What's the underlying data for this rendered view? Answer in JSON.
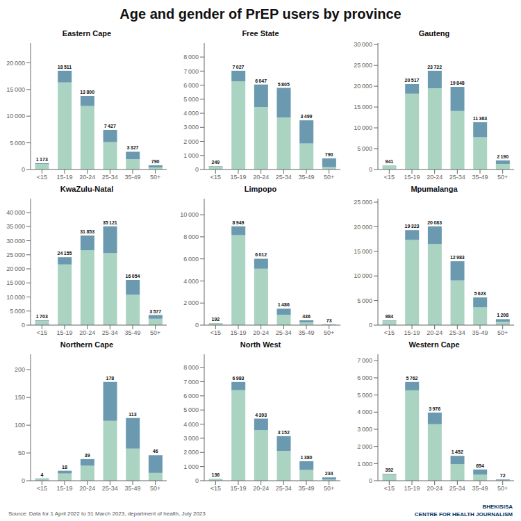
{
  "title": "Age and gender of PrEP users by province",
  "source": "Source: Data for 1 April 2022 to 31 March 2023, department of health, July 2023",
  "annotations": [
    "BHEKISISA",
    "CENTRE FOR HEALTH JOURNALISM"
  ],
  "background": "#ffffff",
  "chart_data": [
    {
      "type": "bar",
      "stacked": true,
      "grid": false,
      "title": "Eastern Cape",
      "categories": [
        "<15",
        "15-19",
        "20-24",
        "25-34",
        "35-49",
        "50+"
      ],
      "series": [
        {
          "color": "#aad4c1",
          "values": [
            1053,
            16311,
            11900,
            5127,
            1927,
            390
          ]
        },
        {
          "color": "#6b9ab0",
          "values": [
            120,
            2200,
            1900,
            2300,
            1400,
            400
          ]
        }
      ],
      "totals": [
        1173,
        18511,
        13800,
        7427,
        3327,
        790
      ],
      "total_labels": [
        "1 173",
        "18 511",
        "13 800",
        "7 427",
        "3 327",
        "790"
      ],
      "ylim": [
        0,
        23694.08
      ],
      "yticks": [
        0,
        {
          "value": 5000,
          "label": "5 000"
        },
        {
          "value": 10000,
          "label": "10 000"
        },
        {
          "value": 15000,
          "label": "15 000"
        },
        {
          "value": 20000,
          "label": "20 000"
        }
      ]
    },
    {
      "type": "bar",
      "stacked": true,
      "grid": false,
      "title": "Free State",
      "categories": [
        "<15",
        "15-19",
        "20-24",
        "25-34",
        "35-49",
        "50+"
      ],
      "series": [
        {
          "color": "#aad4c1",
          "values": [
            224,
            6277,
            4447,
            3705,
            1849,
            170
          ]
        },
        {
          "color": "#6b9ab0",
          "values": [
            25,
            750,
            1600,
            2100,
            1650,
            620
          ]
        }
      ],
      "totals": [
        249,
        7027,
        6047,
        5805,
        3499,
        790
      ],
      "total_labels": [
        "249",
        "7 027",
        "6 047",
        "5 805",
        "3 499",
        "790"
      ],
      "ylim": [
        0,
        8994.56
      ],
      "yticks": [
        0,
        {
          "value": 1000,
          "label": "1 000"
        },
        {
          "value": 2000,
          "label": "2 000"
        },
        {
          "value": 3000,
          "label": "3 000"
        },
        {
          "value": 4000,
          "label": "4 000"
        },
        {
          "value": 5000,
          "label": "5 000"
        },
        {
          "value": 6000,
          "label": "6 000"
        },
        {
          "value": 7000,
          "label": "7 000"
        },
        {
          "value": 8000,
          "label": "8 000"
        }
      ]
    },
    {
      "type": "bar",
      "stacked": true,
      "grid": false,
      "title": "Gauteng",
      "categories": [
        "<15",
        "15-19",
        "20-24",
        "25-34",
        "35-49",
        "50+"
      ],
      "series": [
        {
          "color": "#aad4c1",
          "values": [
            861,
            18217,
            19522,
            14048,
            7763,
            1340
          ]
        },
        {
          "color": "#6b9ab0",
          "values": [
            80,
            2300,
            4200,
            5800,
            3600,
            850
          ]
        }
      ],
      "totals": [
        941,
        20517,
        23722,
        19848,
        11363,
        2190
      ],
      "total_labels": [
        "941",
        "20 517",
        "23 722",
        "19 848",
        "11 363",
        "2 190"
      ],
      "ylim": [
        0,
        30364.16
      ],
      "yticks": [
        0,
        {
          "value": 5000,
          "label": "5 000"
        },
        {
          "value": 10000,
          "label": "10 000"
        },
        {
          "value": 15000,
          "label": "15 000"
        },
        {
          "value": 20000,
          "label": "20 000"
        },
        {
          "value": 25000,
          "label": "25 000"
        },
        {
          "value": 30000,
          "label": "30 000"
        }
      ]
    },
    {
      "type": "bar",
      "stacked": true,
      "grid": false,
      "title": "KwaZulu-Natal",
      "categories": [
        "<15",
        "15-19",
        "20-24",
        "25-34",
        "35-49",
        "50+"
      ],
      "series": [
        {
          "color": "#aad4c1",
          "values": [
            1553,
            21555,
            26653,
            25621,
            10854,
            2277
          ]
        },
        {
          "color": "#6b9ab0",
          "values": [
            150,
            2600,
            5200,
            9500,
            5200,
            1300
          ]
        }
      ],
      "totals": [
        1703,
        24155,
        31853,
        35121,
        16054,
        3577
      ],
      "total_labels": [
        "1 703",
        "24 155",
        "31 853",
        "35 121",
        "16 054",
        "3 577"
      ],
      "ylim": [
        0,
        44954.88
      ],
      "yticks": [
        0,
        {
          "value": 5000,
          "label": "5 000"
        },
        {
          "value": 10000,
          "label": "10 000"
        },
        {
          "value": 15000,
          "label": "15 000"
        },
        {
          "value": 20000,
          "label": "20 000"
        },
        {
          "value": 25000,
          "label": "25 000"
        },
        {
          "value": 30000,
          "label": "30 000"
        },
        {
          "value": 35000,
          "label": "35 000"
        },
        {
          "value": 40000,
          "label": "40 000"
        }
      ]
    },
    {
      "type": "bar",
      "stacked": true,
      "grid": false,
      "title": "Limpopo",
      "categories": [
        "<15",
        "15-19",
        "20-24",
        "25-34",
        "35-49",
        "50+"
      ],
      "series": [
        {
          "color": "#aad4c1",
          "values": [
            172,
            8149,
            5112,
            936,
            246,
            35
          ]
        },
        {
          "color": "#6b9ab0",
          "values": [
            20,
            800,
            900,
            550,
            190,
            38
          ]
        }
      ],
      "totals": [
        192,
        8949,
        6012,
        1486,
        436,
        73
      ],
      "total_labels": [
        "192",
        "8 949",
        "6 012",
        "1 486",
        "436",
        "73"
      ],
      "ylim": [
        0,
        11454.72
      ],
      "yticks": [
        0,
        {
          "value": 2000,
          "label": "2 000"
        },
        {
          "value": 4000,
          "label": "4 000"
        },
        {
          "value": 6000,
          "label": "6 000"
        },
        {
          "value": 8000,
          "label": "8 000"
        },
        {
          "value": 10000,
          "label": "10 000"
        }
      ]
    },
    {
      "type": "bar",
      "stacked": true,
      "grid": false,
      "title": "Mpumalanga",
      "categories": [
        "<15",
        "15-19",
        "20-24",
        "25-34",
        "35-49",
        "50+"
      ],
      "series": [
        {
          "color": "#aad4c1",
          "values": [
            904,
            17323,
            16483,
            9083,
            3623,
            688
          ]
        },
        {
          "color": "#6b9ab0",
          "values": [
            80,
            2000,
            3600,
            3900,
            2000,
            520
          ]
        }
      ],
      "totals": [
        984,
        19323,
        20083,
        12983,
        5623,
        1208
      ],
      "total_labels": [
        "984",
        "19 323",
        "20 083",
        "12 983",
        "5 623",
        "1 208"
      ],
      "ylim": [
        0,
        25706.24
      ],
      "yticks": [
        0,
        {
          "value": 5000,
          "label": "5 000"
        },
        {
          "value": 10000,
          "label": "10 000"
        },
        {
          "value": 15000,
          "label": "15 000"
        },
        {
          "value": 20000,
          "label": "20 000"
        },
        {
          "value": 25000,
          "label": "25 000"
        }
      ]
    },
    {
      "type": "bar",
      "stacked": true,
      "grid": false,
      "title": "Northern Cape",
      "categories": [
        "<15",
        "15-19",
        "20-24",
        "25-34",
        "35-49",
        "50+"
      ],
      "series": [
        {
          "color": "#aad4c1",
          "values": [
            3,
            13,
            27,
            108,
            58,
            14
          ]
        },
        {
          "color": "#6b9ab0",
          "values": [
            1,
            5,
            12,
            70,
            55,
            32
          ]
        }
      ],
      "totals": [
        4,
        18,
        39,
        178,
        113,
        46
      ],
      "total_labels": [
        "4",
        "18",
        "39",
        "178",
        "113",
        "46"
      ],
      "ylim": [
        0,
        227.84
      ],
      "yticks": [
        0,
        50,
        100,
        150,
        200
      ]
    },
    {
      "type": "bar",
      "stacked": true,
      "grid": false,
      "title": "North West",
      "categories": [
        "<15",
        "15-19",
        "20-24",
        "25-34",
        "35-49",
        "50+"
      ],
      "series": [
        {
          "color": "#aad4c1",
          "values": [
            121,
            6403,
            3573,
            2102,
            760,
            79
          ]
        },
        {
          "color": "#6b9ab0",
          "values": [
            15,
            580,
            820,
            1050,
            620,
            155
          ]
        }
      ],
      "totals": [
        136,
        6983,
        4393,
        3152,
        1380,
        234
      ],
      "total_labels": [
        "136",
        "6 983",
        "4 393",
        "3 152",
        "1 380",
        "234"
      ],
      "ylim": [
        0,
        8938.24
      ],
      "yticks": [
        0,
        {
          "value": 1000,
          "label": "1 000"
        },
        {
          "value": 2000,
          "label": "2 000"
        },
        {
          "value": 3000,
          "label": "3 000"
        },
        {
          "value": 4000,
          "label": "4 000"
        },
        {
          "value": 5000,
          "label": "5 000"
        },
        {
          "value": 6000,
          "label": "6 000"
        },
        {
          "value": 7000,
          "label": "7 000"
        },
        {
          "value": 8000,
          "label": "8 000"
        }
      ]
    },
    {
      "type": "bar",
      "stacked": true,
      "grid": false,
      "title": "Western Cape",
      "categories": [
        "<15",
        "15-19",
        "20-24",
        "25-34",
        "35-49",
        "50+"
      ],
      "series": [
        {
          "color": "#aad4c1",
          "values": [
            354,
            5272,
            3296,
            962,
            364,
            24
          ]
        },
        {
          "color": "#6b9ab0",
          "values": [
            38,
            490,
            680,
            490,
            290,
            48
          ]
        }
      ],
      "totals": [
        392,
        5762,
        3976,
        1452,
        654,
        72
      ],
      "total_labels": [
        "392",
        "5 762",
        "3 976",
        "1 452",
        "654",
        "72"
      ],
      "ylim": [
        0,
        7375.36
      ],
      "yticks": [
        0,
        {
          "value": 1000,
          "label": "1 000"
        },
        {
          "value": 2000,
          "label": "2 000"
        },
        {
          "value": 3000,
          "label": "3 000"
        },
        {
          "value": 4000,
          "label": "4 000"
        },
        {
          "value": 5000,
          "label": "5 000"
        },
        {
          "value": 6000,
          "label": "6 000"
        },
        {
          "value": 7000,
          "label": "7 000"
        }
      ]
    }
  ]
}
